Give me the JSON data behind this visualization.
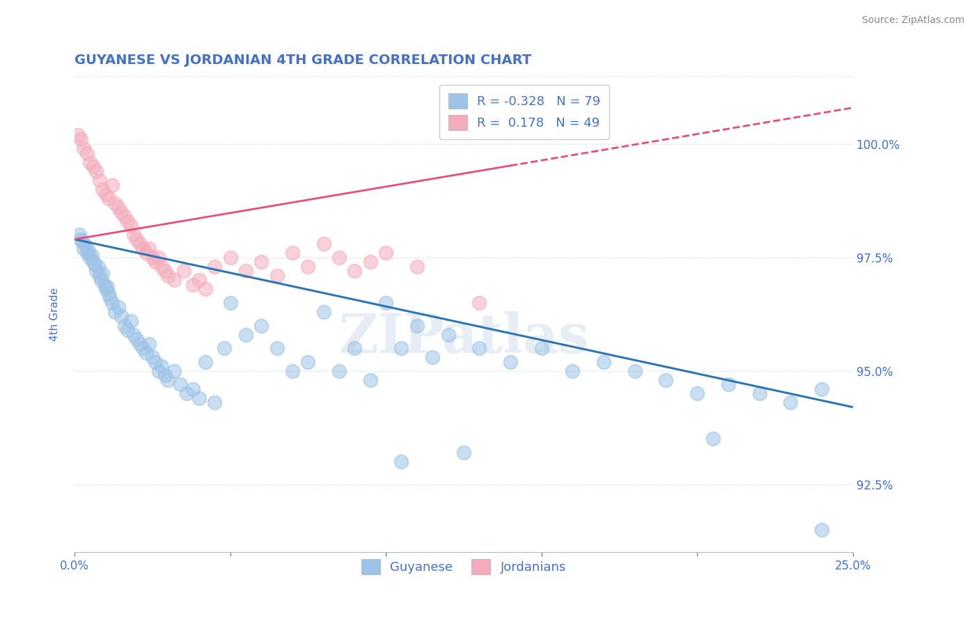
{
  "title": "GUYANESE VS JORDANIAN 4TH GRADE CORRELATION CHART",
  "source": "Source: ZipAtlas.com",
  "ylabel": "4th Grade",
  "xlim": [
    0.0,
    25.0
  ],
  "ylim": [
    91.0,
    101.5
  ],
  "xticks": [
    0.0,
    5.0,
    10.0,
    15.0,
    20.0,
    25.0
  ],
  "yticks": [
    92.5,
    95.0,
    97.5,
    100.0
  ],
  "yticklabels": [
    "92.5%",
    "95.0%",
    "97.5%",
    "100.0%"
  ],
  "title_color": "#4472c4",
  "axis_color": "#4472c4",
  "background_color": "#ffffff",
  "blue_color": "#9dc3e6",
  "pink_color": "#f4acbc",
  "legend_blue_label": "R = -0.328   N = 79",
  "legend_pink_label": "R =  0.178   N = 49",
  "legend_guyanese": "Guyanese",
  "legend_jordanians": "Jordanians",
  "watermark": "ZIPatlas",
  "blue_scatter": [
    [
      0.15,
      98.0
    ],
    [
      0.2,
      97.9
    ],
    [
      0.25,
      97.85
    ],
    [
      0.3,
      97.7
    ],
    [
      0.35,
      97.75
    ],
    [
      0.4,
      97.6
    ],
    [
      0.45,
      97.65
    ],
    [
      0.5,
      97.5
    ],
    [
      0.55,
      97.55
    ],
    [
      0.6,
      97.4
    ],
    [
      0.65,
      97.35
    ],
    [
      0.7,
      97.2
    ],
    [
      0.75,
      97.3
    ],
    [
      0.8,
      97.1
    ],
    [
      0.85,
      97.0
    ],
    [
      0.9,
      97.15
    ],
    [
      0.95,
      96.9
    ],
    [
      1.0,
      96.8
    ],
    [
      1.05,
      96.85
    ],
    [
      1.1,
      96.7
    ],
    [
      1.15,
      96.6
    ],
    [
      1.2,
      96.5
    ],
    [
      1.3,
      96.3
    ],
    [
      1.4,
      96.4
    ],
    [
      1.5,
      96.2
    ],
    [
      1.6,
      96.0
    ],
    [
      1.7,
      95.9
    ],
    [
      1.8,
      96.1
    ],
    [
      1.9,
      95.8
    ],
    [
      2.0,
      95.7
    ],
    [
      2.1,
      95.6
    ],
    [
      2.2,
      95.5
    ],
    [
      2.3,
      95.4
    ],
    [
      2.4,
      95.6
    ],
    [
      2.5,
      95.3
    ],
    [
      2.6,
      95.2
    ],
    [
      2.7,
      95.0
    ],
    [
      2.8,
      95.1
    ],
    [
      2.9,
      94.9
    ],
    [
      3.0,
      94.8
    ],
    [
      3.2,
      95.0
    ],
    [
      3.4,
      94.7
    ],
    [
      3.6,
      94.5
    ],
    [
      3.8,
      94.6
    ],
    [
      4.0,
      94.4
    ],
    [
      4.2,
      95.2
    ],
    [
      4.5,
      94.3
    ],
    [
      4.8,
      95.5
    ],
    [
      5.0,
      96.5
    ],
    [
      5.5,
      95.8
    ],
    [
      6.0,
      96.0
    ],
    [
      6.5,
      95.5
    ],
    [
      7.0,
      95.0
    ],
    [
      7.5,
      95.2
    ],
    [
      8.0,
      96.3
    ],
    [
      8.5,
      95.0
    ],
    [
      9.0,
      95.5
    ],
    [
      9.5,
      94.8
    ],
    [
      10.0,
      96.5
    ],
    [
      10.5,
      95.5
    ],
    [
      11.0,
      96.0
    ],
    [
      11.5,
      95.3
    ],
    [
      12.0,
      95.8
    ],
    [
      13.0,
      95.5
    ],
    [
      14.0,
      95.2
    ],
    [
      15.0,
      95.5
    ],
    [
      16.0,
      95.0
    ],
    [
      17.0,
      95.2
    ],
    [
      18.0,
      95.0
    ],
    [
      19.0,
      94.8
    ],
    [
      20.0,
      94.5
    ],
    [
      21.0,
      94.7
    ],
    [
      22.0,
      94.5
    ],
    [
      23.0,
      94.3
    ],
    [
      24.0,
      94.6
    ],
    [
      24.0,
      91.5
    ],
    [
      20.5,
      93.5
    ],
    [
      12.5,
      93.2
    ],
    [
      10.5,
      93.0
    ]
  ],
  "pink_scatter": [
    [
      0.1,
      100.2
    ],
    [
      0.2,
      100.1
    ],
    [
      0.3,
      99.9
    ],
    [
      0.4,
      99.8
    ],
    [
      0.5,
      99.6
    ],
    [
      0.6,
      99.5
    ],
    [
      0.7,
      99.4
    ],
    [
      0.8,
      99.2
    ],
    [
      0.9,
      99.0
    ],
    [
      1.0,
      98.9
    ],
    [
      1.1,
      98.8
    ],
    [
      1.2,
      99.1
    ],
    [
      1.3,
      98.7
    ],
    [
      1.4,
      98.6
    ],
    [
      1.5,
      98.5
    ],
    [
      1.6,
      98.4
    ],
    [
      1.7,
      98.3
    ],
    [
      1.8,
      98.2
    ],
    [
      1.9,
      98.0
    ],
    [
      2.0,
      97.9
    ],
    [
      2.1,
      97.8
    ],
    [
      2.2,
      97.7
    ],
    [
      2.3,
      97.6
    ],
    [
      2.4,
      97.7
    ],
    [
      2.5,
      97.5
    ],
    [
      2.6,
      97.4
    ],
    [
      2.7,
      97.5
    ],
    [
      2.8,
      97.3
    ],
    [
      2.9,
      97.2
    ],
    [
      3.0,
      97.1
    ],
    [
      3.2,
      97.0
    ],
    [
      3.5,
      97.2
    ],
    [
      3.8,
      96.9
    ],
    [
      4.0,
      97.0
    ],
    [
      4.2,
      96.8
    ],
    [
      4.5,
      97.3
    ],
    [
      5.0,
      97.5
    ],
    [
      5.5,
      97.2
    ],
    [
      6.0,
      97.4
    ],
    [
      6.5,
      97.1
    ],
    [
      7.0,
      97.6
    ],
    [
      7.5,
      97.3
    ],
    [
      8.0,
      97.8
    ],
    [
      8.5,
      97.5
    ],
    [
      9.0,
      97.2
    ],
    [
      9.5,
      97.4
    ],
    [
      10.0,
      97.6
    ],
    [
      11.0,
      97.3
    ],
    [
      13.0,
      96.5
    ]
  ],
  "blue_trendline_x": [
    0.0,
    25.0
  ],
  "blue_trendline_y": [
    97.9,
    94.2
  ],
  "pink_trendline_x": [
    0.0,
    25.0
  ],
  "pink_trendline_y": [
    97.9,
    100.8
  ],
  "pink_solid_end": 14.0
}
